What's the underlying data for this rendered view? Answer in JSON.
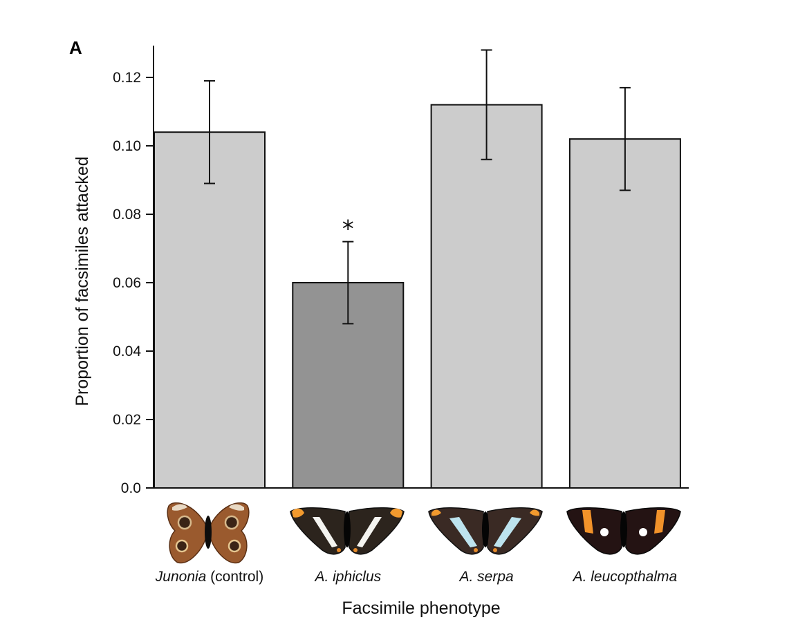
{
  "panel_label": "A",
  "colors": {
    "bar_default": "#cccccc",
    "bar_highlight": "#939393",
    "outline": "#111111"
  },
  "chart_data": {
    "type": "bar",
    "ylabel": "Proportion of facsimiles attacked",
    "xlabel": "Facsimile phenotype",
    "ylim": [
      0,
      0.13
    ],
    "yticks": [
      "0.0",
      "0.02",
      "0.04",
      "0.06",
      "0.08",
      "0.10",
      "0.12"
    ],
    "ytick_values": [
      0,
      0.02,
      0.04,
      0.06,
      0.08,
      0.1,
      0.12
    ],
    "categories": [
      {
        "italic": "Junonia",
        "plain": " (control)",
        "icon": "junonia-butterfly-icon"
      },
      {
        "italic": "A. iphiclus",
        "plain": "",
        "icon": "iphiclus-butterfly-icon"
      },
      {
        "italic": "A. serpa",
        "plain": "",
        "icon": "serpa-butterfly-icon"
      },
      {
        "italic": "A. leucopthalma",
        "plain": "",
        "icon": "leucopthalma-butterfly-icon"
      }
    ],
    "values": [
      0.104,
      0.06,
      0.112,
      0.102
    ],
    "error_low": [
      0.089,
      0.048,
      0.096,
      0.087
    ],
    "error_high": [
      0.119,
      0.072,
      0.128,
      0.117
    ],
    "highlight_index": 1,
    "annotations": [
      {
        "index": 1,
        "text": "*"
      }
    ],
    "grid": false,
    "legend": "none"
  }
}
